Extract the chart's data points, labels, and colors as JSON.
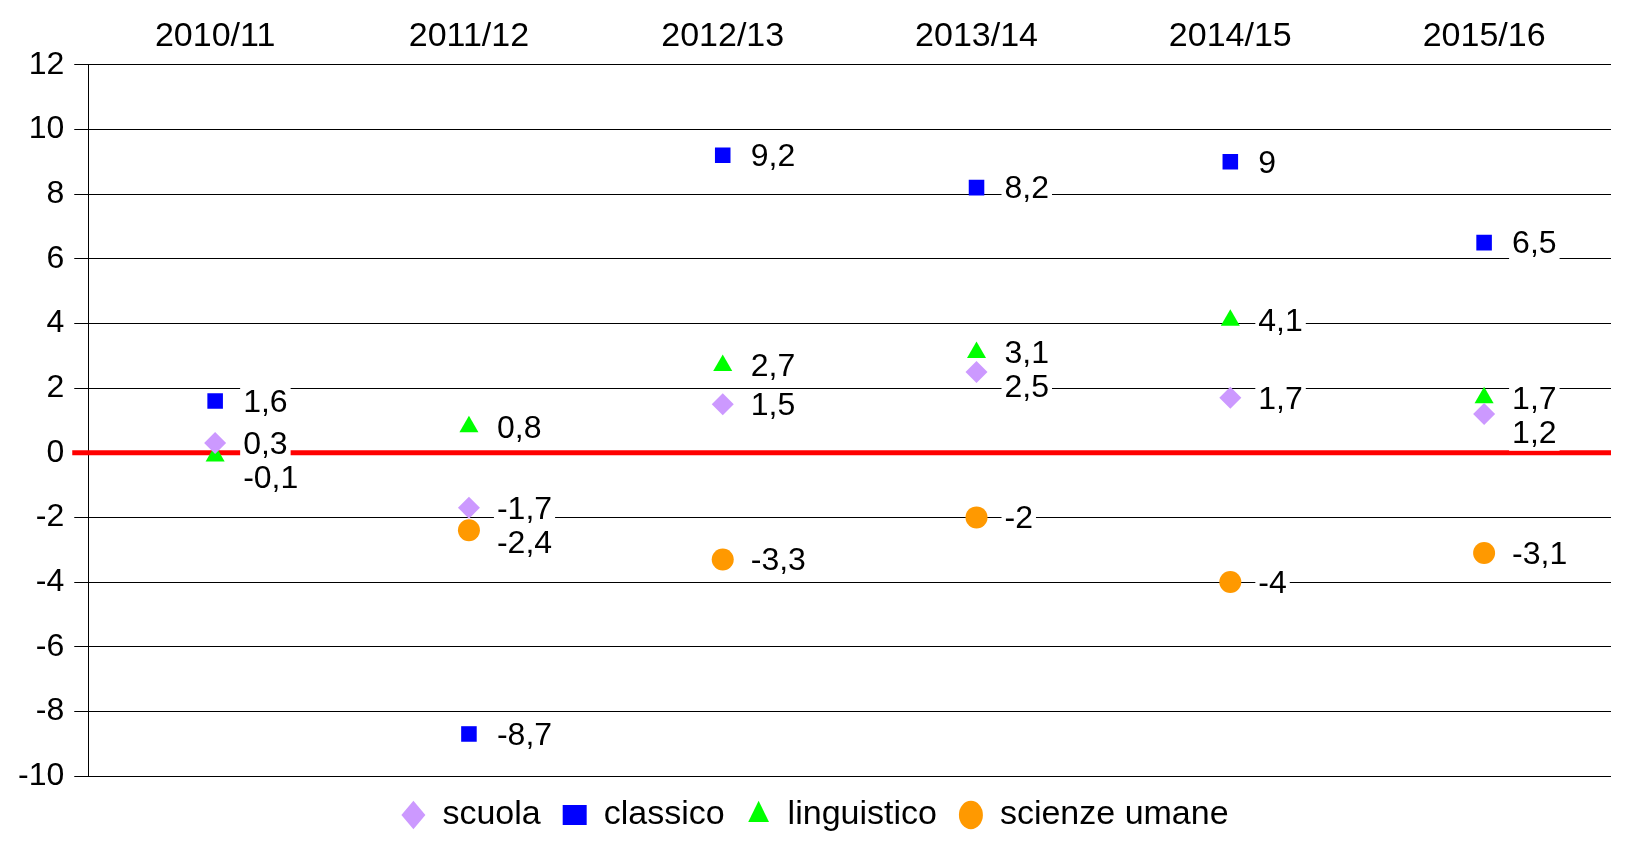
{
  "chart_data": {
    "type": "scatter",
    "categories": [
      "2010/11",
      "2011/12",
      "2012/13",
      "2013/14",
      "2014/15",
      "2015/16"
    ],
    "series": [
      {
        "name": "scuola",
        "color": "#cc99ff",
        "marker": "diamond",
        "values": [
          0.3,
          -1.7,
          1.5,
          2.5,
          1.7,
          1.2
        ],
        "value_labels": [
          "0,3",
          "-1,7",
          "1,5",
          "2,5",
          "1,7",
          "1,2"
        ]
      },
      {
        "name": "classico",
        "color": "#0000ff",
        "marker": "square",
        "values": [
          1.6,
          -8.7,
          9.2,
          8.2,
          9,
          6.5
        ],
        "value_labels": [
          "1,6",
          "-8,7",
          "9,2",
          "8,2",
          "9",
          "6,5"
        ]
      },
      {
        "name": "linguistico",
        "color": "#00ff00",
        "marker": "triangle",
        "values": [
          -0.1,
          0.8,
          2.7,
          3.1,
          4.1,
          1.7
        ],
        "value_labels": [
          "-0,1",
          "0,8",
          "2,7",
          "3,1",
          "4,1",
          "1,7"
        ]
      },
      {
        "name": "scienze umane",
        "color": "#ff9900",
        "marker": "circle",
        "values": [
          null,
          -2.4,
          -3.3,
          -2,
          -4,
          -3.1
        ],
        "value_labels": [
          null,
          "-2,4",
          "-3,3",
          "-2",
          "-4",
          "-3,1"
        ]
      }
    ],
    "ylim": [
      -10,
      12
    ],
    "yticks": [
      -10,
      -8,
      -6,
      -4,
      -2,
      0,
      2,
      4,
      6,
      8,
      10,
      12
    ],
    "grid": "y",
    "legend": "bottom",
    "ref_lines": [
      {
        "axis": "y",
        "value": 0,
        "color": "#ff0000",
        "line_style": "solid"
      }
    ]
  }
}
